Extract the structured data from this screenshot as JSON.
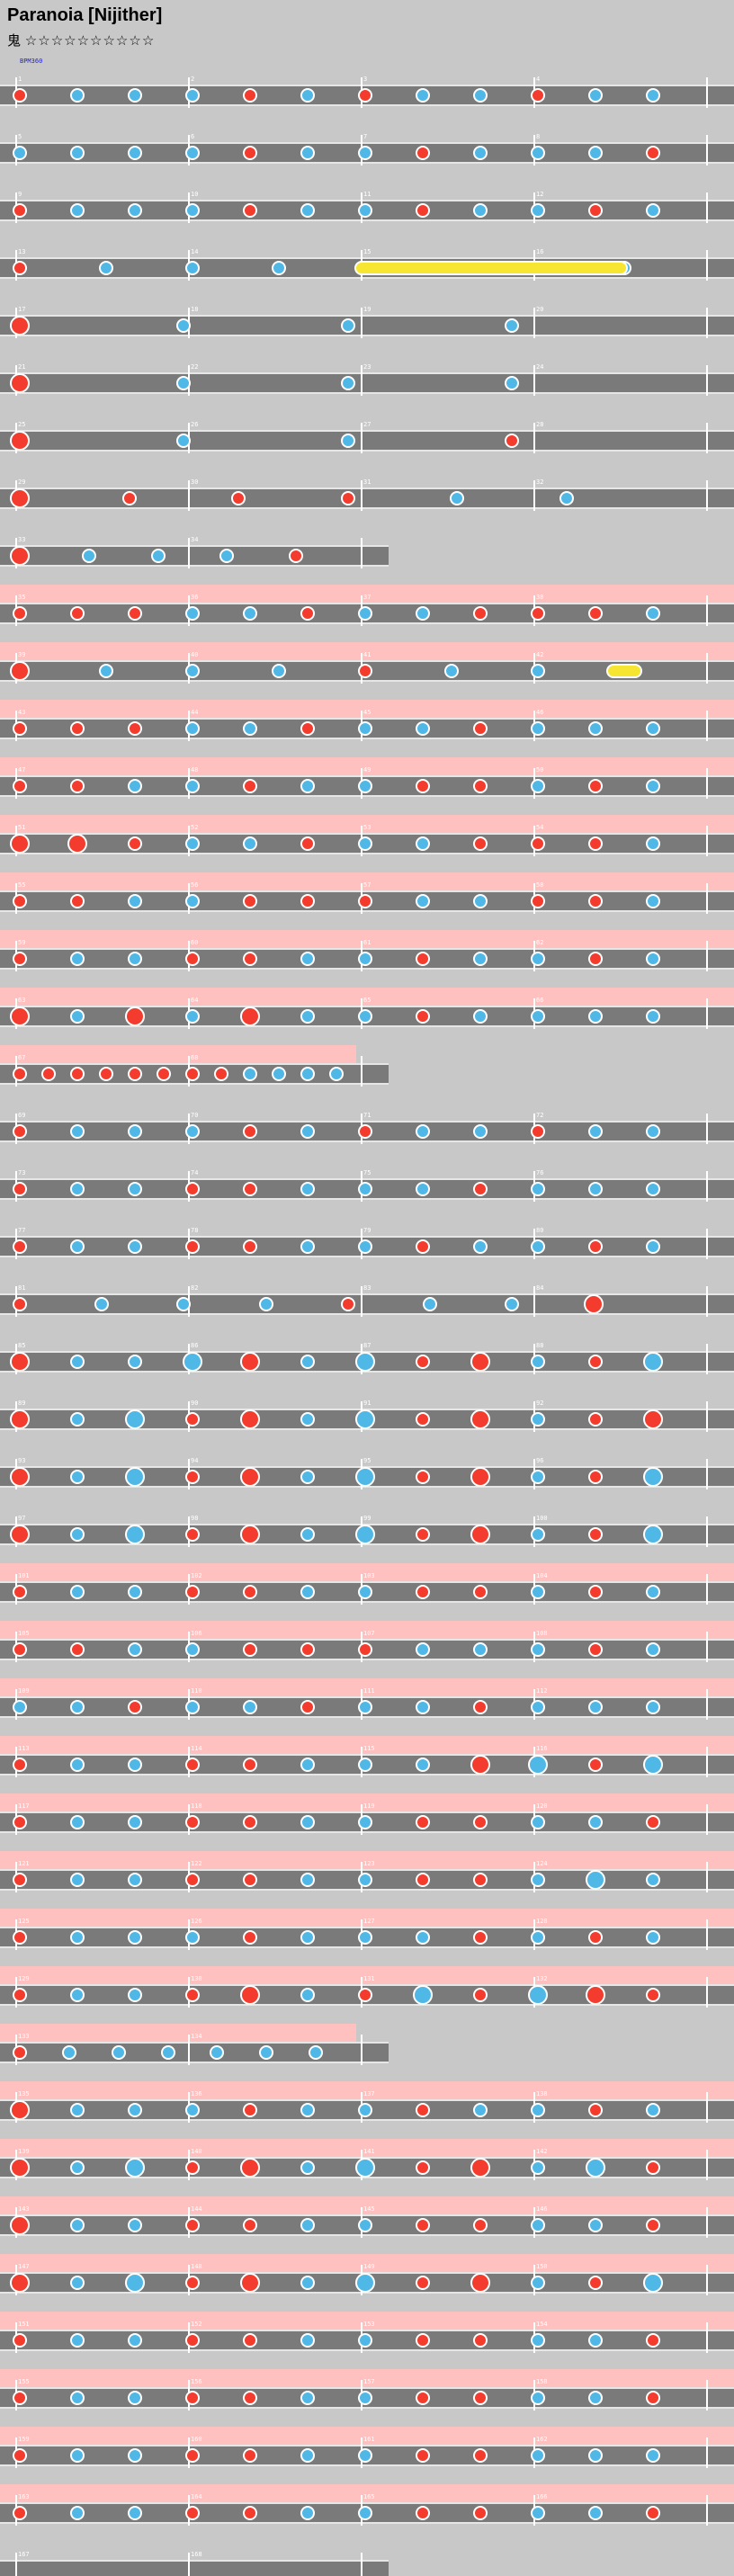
{
  "title": "Paranoia [Nijither]",
  "difficulty_label": "鬼",
  "difficulty_stars": "☆☆☆☆☆☆☆☆☆☆",
  "bpm_label": "BPM360",
  "colors": {
    "background": "#c8c8c8",
    "lane": "#7a7a7a",
    "gogo": "#ffc0c0",
    "don": "#f33c2e",
    "ka": "#4fb8e6",
    "roll": "#f6e632"
  },
  "rows": [
    {
      "m": [
        1,
        2,
        3,
        4
      ],
      "gogo": false,
      "pattern": "dkkkdkdkkdkk"
    },
    {
      "m": [
        5,
        6,
        7,
        8
      ],
      "gogo": false,
      "pattern": "kkkkdkkdkkkd"
    },
    {
      "m": [
        9,
        10,
        11,
        12
      ],
      "gogo": false,
      "pattern": "dkkkdkkdkkdk"
    },
    {
      "m": [
        13,
        14,
        15,
        16
      ],
      "gogo": false,
      "pattern": "dkkkdkkk",
      "roll": true
    },
    {
      "m": [
        17,
        18,
        19,
        20
      ],
      "gogo": false,
      "pattern": "Dkkk",
      "sparse": true
    },
    {
      "m": [
        21,
        22,
        23,
        24
      ],
      "gogo": false,
      "pattern": "Dkkk",
      "sparse": true
    },
    {
      "m": [
        25,
        26,
        27,
        28
      ],
      "gogo": false,
      "pattern": "Dkkd",
      "sparse": true
    },
    {
      "m": [
        29,
        30,
        31,
        32
      ],
      "gogo": false,
      "pattern": "Ddddkk",
      "sparse": true
    },
    {
      "m": [
        33,
        34
      ],
      "gogo": false,
      "pattern": "Dkkkd",
      "short": true
    },
    {
      "m": [
        35,
        36,
        37,
        38
      ],
      "gogo": true,
      "pattern": "dddkkdkkdddk"
    },
    {
      "m": [
        39,
        40,
        41,
        42
      ],
      "gogo": true,
      "pattern": "Dkkkdkkd",
      "roll2": true
    },
    {
      "m": [
        43,
        44,
        45,
        46
      ],
      "gogo": true,
      "pattern": "dddkkdkkdkkk"
    },
    {
      "m": [
        47,
        48,
        49,
        50
      ],
      "gogo": true,
      "pattern": "ddkkdkkddkdk"
    },
    {
      "m": [
        51,
        52,
        53,
        54
      ],
      "gogo": true,
      "pattern": "DDdkkdkkdddk"
    },
    {
      "m": [
        55,
        56,
        57,
        58
      ],
      "gogo": true,
      "pattern": "ddkkdddkkddk"
    },
    {
      "m": [
        59,
        60,
        61,
        62
      ],
      "gogo": true,
      "pattern": "dkkddkkdkkdk"
    },
    {
      "m": [
        63,
        64,
        65,
        66
      ],
      "gogo": true,
      "pattern": "DkDkDkkdkkkk"
    },
    {
      "m": [
        67,
        68
      ],
      "gogo": true,
      "pattern": "ddddddddkkkk",
      "short": true
    },
    {
      "m": [
        69,
        70,
        71,
        72
      ],
      "gogo": false,
      "pattern": "dkkkdkdkkdkk"
    },
    {
      "m": [
        73,
        74,
        75,
        76
      ],
      "gogo": false,
      "pattern": "dkkddkkkdkkk"
    },
    {
      "m": [
        77,
        78,
        79,
        80
      ],
      "gogo": false,
      "pattern": "dkkddkkdkkdk"
    },
    {
      "m": [
        81,
        82,
        83,
        84
      ],
      "gogo": false,
      "pattern": "dkkkdkkD",
      "sparse": true
    },
    {
      "m": [
        85,
        86,
        87,
        88
      ],
      "gogo": false,
      "pattern": "DkkKDkKdDkdK"
    },
    {
      "m": [
        89,
        90,
        91,
        92
      ],
      "gogo": false,
      "pattern": "DkKdDkKdDkdD"
    },
    {
      "m": [
        93,
        94,
        95,
        96
      ],
      "gogo": false,
      "pattern": "DkKdDkKdDkdK"
    },
    {
      "m": [
        97,
        98,
        99,
        100
      ],
      "gogo": false,
      "pattern": "DkKdDkKdDkdK"
    },
    {
      "m": [
        101,
        102,
        103,
        104
      ],
      "gogo": true,
      "pattern": "dkkddkkddkdk"
    },
    {
      "m": [
        105,
        106,
        107,
        108
      ],
      "gogo": true,
      "pattern": "ddkkdddkkkdk"
    },
    {
      "m": [
        109,
        110,
        111,
        112
      ],
      "gogo": true,
      "pattern": "kkdkkdkkdkkk"
    },
    {
      "m": [
        113,
        114,
        115,
        116
      ],
      "gogo": true,
      "pattern": "dkkddkkkDKdK"
    },
    {
      "m": [
        117,
        118,
        119,
        120
      ],
      "gogo": true,
      "pattern": "dkkddkkddkkd"
    },
    {
      "m": [
        121,
        122,
        123,
        124
      ],
      "gogo": true,
      "pattern": "dkkddkkddkKk"
    },
    {
      "m": [
        125,
        126,
        127,
        128
      ],
      "gogo": true,
      "pattern": "dkkkdkkkdkdk"
    },
    {
      "m": [
        129,
        130,
        131,
        132
      ],
      "gogo": true,
      "pattern": "dkkdDkdKdKDd"
    },
    {
      "m": [
        133,
        134
      ],
      "gogo": true,
      "pattern": "dkkkkkk",
      "short": true
    },
    {
      "m": [
        135,
        136,
        137,
        138
      ],
      "gogo": true,
      "pattern": "Dkkkdkkdkkdk"
    },
    {
      "m": [
        139,
        140,
        141,
        142
      ],
      "gogo": true,
      "pattern": "DkKdDkKdDkKd"
    },
    {
      "m": [
        143,
        144,
        145,
        146
      ],
      "gogo": true,
      "pattern": "Dkkddkkddkkd"
    },
    {
      "m": [
        147,
        148,
        149,
        150
      ],
      "gogo": true,
      "pattern": "DkKdDkKdDkdK"
    },
    {
      "m": [
        151,
        152,
        153,
        154
      ],
      "gogo": true,
      "pattern": "dkkddkkddkkd"
    },
    {
      "m": [
        155,
        156,
        157,
        158
      ],
      "gogo": true,
      "pattern": "dkkddkkddkkd"
    },
    {
      "m": [
        159,
        160,
        161,
        162
      ],
      "gogo": true,
      "pattern": "dkkddkkddkkk"
    },
    {
      "m": [
        163,
        164,
        165,
        166
      ],
      "gogo": true,
      "pattern": "dkkddkkddkkd"
    },
    {
      "m": [
        167,
        168
      ],
      "gogo": false,
      "pattern": "",
      "short": true
    }
  ]
}
